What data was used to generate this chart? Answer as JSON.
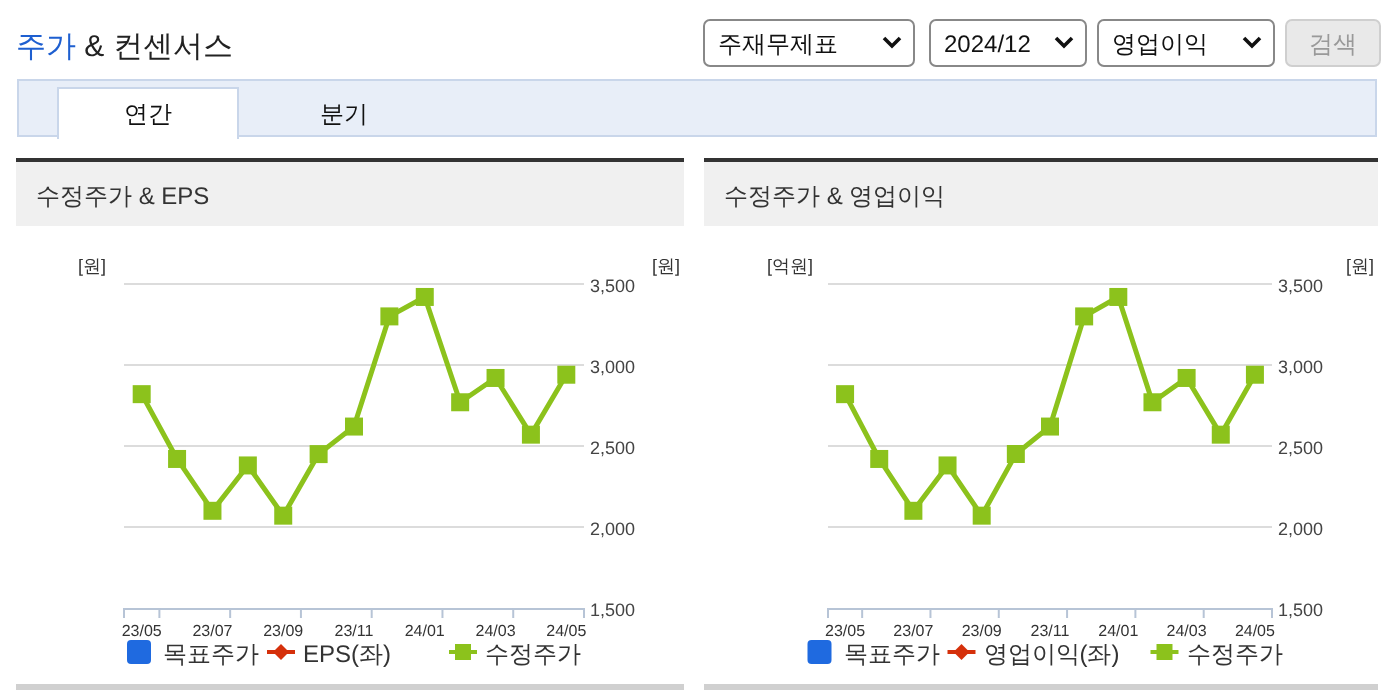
{
  "chart_data": [
    {
      "type": "other",
      "title": "주가 & 컨센서스",
      "annotations": [
        "주재무제표",
        "2024/12",
        "영업이익",
        "검색",
        "연간",
        "분기"
      ]
    },
    {
      "type": "line",
      "title": "수정주가 & EPS",
      "ylabel": "[원]",
      "y2label": "[원]",
      "categories": [
        "23/05",
        null,
        "23/07",
        null,
        "23/09",
        null,
        "23/11",
        null,
        "24/01",
        null,
        "24/03",
        null,
        "24/05"
      ],
      "y2lim": [
        1500,
        3500
      ],
      "y2ticks": [
        {
          "value": 1500,
          "label": "1,500"
        },
        {
          "value": 2000,
          "label": "2,000"
        },
        {
          "value": 2500,
          "label": "2,500"
        },
        {
          "value": 3000,
          "label": "3,000"
        },
        {
          "value": 3500,
          "label": "3,500"
        }
      ],
      "grid": "y",
      "legend": "bottom",
      "series": [
        {
          "name": "목표주가",
          "type": "bar",
          "color": "#1f6ae0",
          "values": [
            null,
            null,
            null,
            null,
            null,
            null,
            null,
            null,
            null,
            null,
            null,
            null,
            null
          ]
        },
        {
          "name": "EPS(좌)",
          "type": "line",
          "marker": "diamond",
          "color": "#d5300b",
          "values": [
            null,
            null,
            null,
            null,
            null,
            null,
            null,
            null,
            null,
            null,
            null,
            null,
            null
          ]
        },
        {
          "name": "수정주가",
          "type": "line",
          "marker": "square",
          "axis": "y2",
          "color": "#8cc21c",
          "values": [
            2820,
            2420,
            2100,
            2380,
            2070,
            2450,
            2620,
            3300,
            3420,
            2770,
            2920,
            2570,
            2940
          ]
        }
      ]
    },
    {
      "type": "line",
      "title": "수정주가 & 영업이익",
      "ylabel": "[억원]",
      "y2label": "[원]",
      "categories": [
        "23/05",
        null,
        "23/07",
        null,
        "23/09",
        null,
        "23/11",
        null,
        "24/01",
        null,
        "24/03",
        null,
        "24/05"
      ],
      "y2lim": [
        1500,
        3500
      ],
      "y2ticks": [
        {
          "value": 1500,
          "label": "1,500"
        },
        {
          "value": 2000,
          "label": "2,000"
        },
        {
          "value": 2500,
          "label": "2,500"
        },
        {
          "value": 3000,
          "label": "3,000"
        },
        {
          "value": 3500,
          "label": "3,500"
        }
      ],
      "grid": "y",
      "legend": "bottom",
      "series": [
        {
          "name": "목표주가",
          "type": "bar",
          "color": "#1f6ae0",
          "values": [
            null,
            null,
            null,
            null,
            null,
            null,
            null,
            null,
            null,
            null,
            null,
            null,
            null
          ]
        },
        {
          "name": "영업이익(좌)",
          "type": "line",
          "marker": "diamond",
          "color": "#d5300b",
          "values": [
            null,
            null,
            null,
            null,
            null,
            null,
            null,
            null,
            null,
            null,
            null,
            null,
            null
          ]
        },
        {
          "name": "수정주가",
          "type": "line",
          "marker": "square",
          "axis": "y2",
          "color": "#8cc21c",
          "values": [
            2820,
            2420,
            2100,
            2380,
            2070,
            2450,
            2620,
            3300,
            3420,
            2770,
            2920,
            2570,
            2940
          ]
        }
      ]
    }
  ]
}
